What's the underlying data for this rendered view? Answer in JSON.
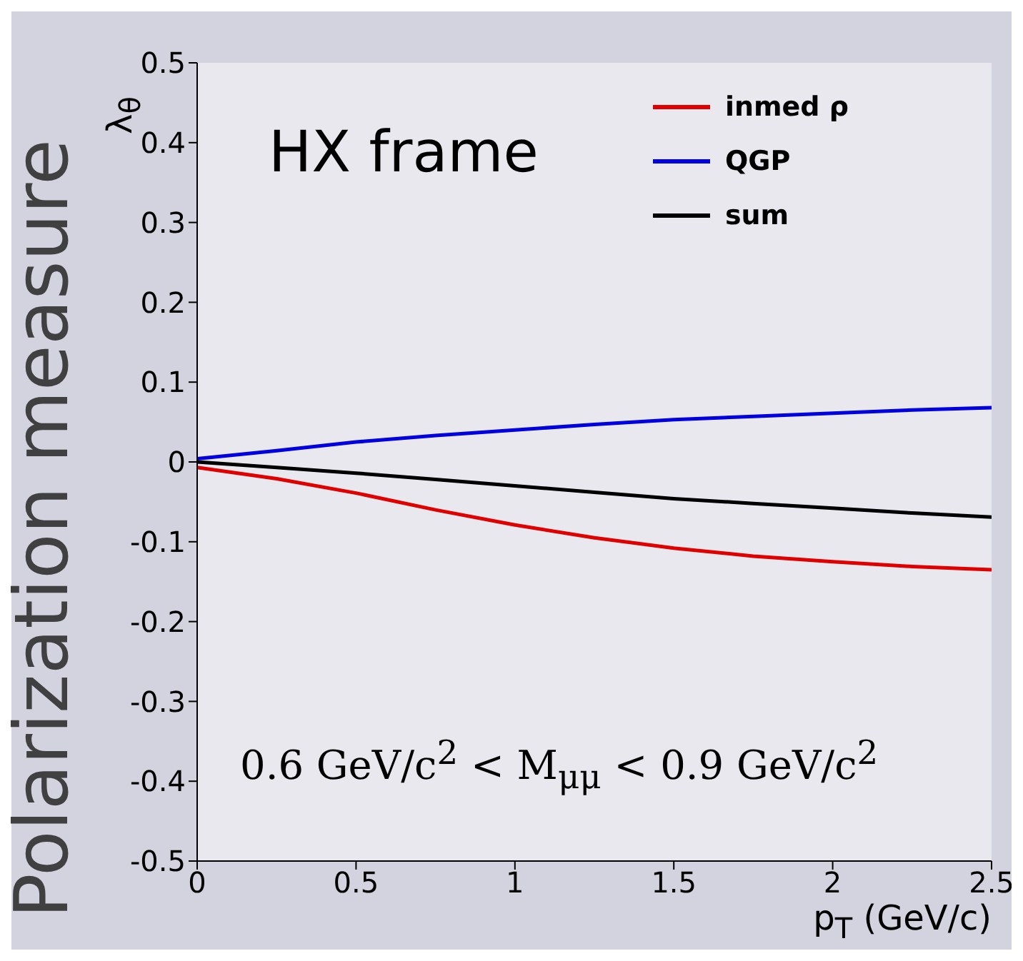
{
  "chart_data": {
    "type": "line",
    "x": [
      0,
      0.25,
      0.5,
      0.75,
      1,
      1.25,
      1.5,
      1.75,
      2,
      2.25,
      2.5
    ],
    "series": [
      {
        "name": "inmed ρ",
        "color": "#e00000",
        "values": [
          -0.007,
          -0.021,
          -0.039,
          -0.06,
          -0.079,
          -0.095,
          -0.108,
          -0.118,
          -0.125,
          -0.131,
          -0.135
        ]
      },
      {
        "name": "QGP",
        "color": "#0000e0",
        "values": [
          0.004,
          0.014,
          0.025,
          0.033,
          0.04,
          0.047,
          0.053,
          0.057,
          0.061,
          0.065,
          0.068
        ]
      },
      {
        "name": "sum",
        "color": "#000000",
        "values": [
          0,
          -0.007,
          -0.014,
          -0.022,
          -0.03,
          -0.038,
          -0.046,
          -0.052,
          -0.058,
          -0.064,
          -0.069
        ]
      }
    ],
    "xlabel": "p$_{T}$ (GeV/c)",
    "ylabel": "λ$_{θ}$",
    "annotations": [
      "Polarization measure",
      "HX frame",
      "0.6 GeV/c$^{2}$ < M$_{μμ}$ < 0.9 GeV/c$^{2}$"
    ],
    "xlim": [
      0,
      2.5
    ],
    "xticks": [
      0,
      0.5,
      1,
      1.5,
      2,
      2.5
    ],
    "ylim": [
      -0.5,
      0.5
    ],
    "yticks": [
      -0.5,
      -0.4,
      -0.3,
      -0.2,
      -0.1,
      0,
      0.1,
      0.2,
      0.3,
      0.4,
      0.5
    ],
    "legend": "top right",
    "grid": false,
    "marker": "none",
    "line_style": "solid"
  }
}
